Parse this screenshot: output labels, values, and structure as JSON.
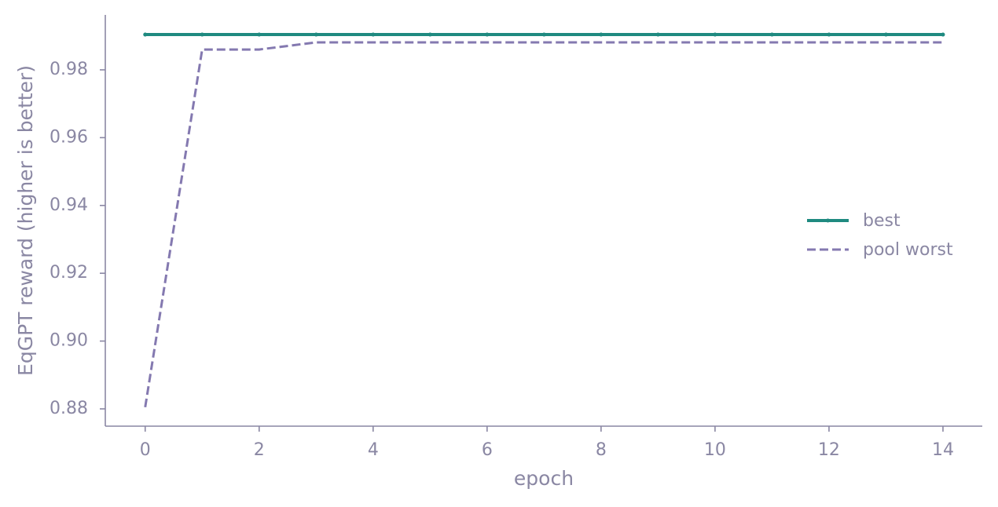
{
  "chart_data": {
    "type": "line",
    "x_label": "epoch",
    "y_label": "EqGPT reward (higher is better)",
    "x": [
      0,
      1,
      2,
      3,
      4,
      5,
      6,
      7,
      8,
      9,
      10,
      11,
      12,
      13,
      14
    ],
    "series": [
      {
        "name": "best",
        "color": "#1f8a80",
        "linestyle": "solid",
        "marker": true,
        "values": [
          0.9904,
          0.9904,
          0.9904,
          0.9904,
          0.9904,
          0.9904,
          0.9904,
          0.9904,
          0.9904,
          0.9904,
          0.9904,
          0.9904,
          0.9904,
          0.9904,
          0.9904
        ]
      },
      {
        "name": "pool worst",
        "color": "#8479b0",
        "linestyle": "dashed",
        "marker": false,
        "values": [
          0.8805,
          0.986,
          0.986,
          0.9881,
          0.9881,
          0.9881,
          0.9881,
          0.9881,
          0.9881,
          0.9881,
          0.9881,
          0.9881,
          0.9881,
          0.9881,
          0.9881
        ]
      }
    ],
    "xlim": [
      -0.7,
      14.69
    ],
    "ylim": [
      0.8749,
      0.9962
    ],
    "xticks": [
      0,
      2,
      4,
      6,
      8,
      10,
      12,
      14
    ],
    "yticks": [
      0.88,
      {
        "value": 0.9,
        "label": "0.90"
      },
      0.92,
      0.94,
      0.96,
      0.98
    ],
    "legend": "right"
  }
}
